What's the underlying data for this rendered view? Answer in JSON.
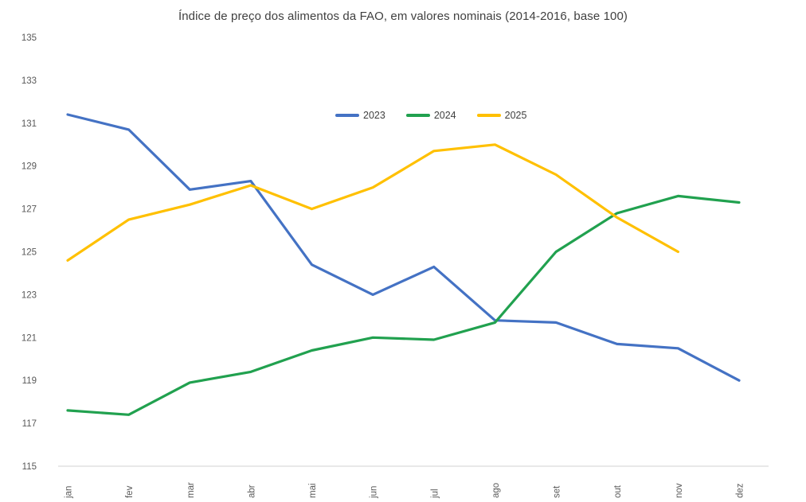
{
  "title": "Índice de preço dos alimentos da FAO, em valores nominais (2014-2016, base 100)",
  "colors": {
    "axis_line": "#D9D9D9",
    "tick_label": "#595959",
    "title_text": "#404040"
  },
  "chart_data": {
    "type": "line",
    "title": "Índice de preço dos alimentos da FAO, em valores nominais (2014-2016, base 100)",
    "xlabel": "",
    "ylabel": "",
    "categories": [
      "jan",
      "fev",
      "mar",
      "abr",
      "mai",
      "jun",
      "jul",
      "ago",
      "set",
      "out",
      "nov",
      "dez"
    ],
    "series": [
      {
        "name": "2023",
        "color": "#4472C4",
        "values": [
          131.4,
          130.7,
          127.9,
          128.3,
          124.4,
          123.0,
          124.3,
          121.8,
          121.7,
          120.7,
          120.5,
          119.0
        ]
      },
      {
        "name": "2024",
        "color": "#21A14F",
        "values": [
          117.6,
          117.4,
          118.9,
          119.4,
          120.4,
          121.0,
          120.9,
          121.7,
          125.0,
          126.8,
          127.6,
          127.3
        ]
      },
      {
        "name": "2025",
        "color": "#FFC000",
        "values": [
          124.6,
          126.5,
          127.2,
          128.1,
          127.0,
          128.0,
          129.7,
          130.0,
          128.6,
          126.6,
          125.0
        ]
      }
    ],
    "ylim": [
      115,
      135
    ],
    "yticks": [
      115,
      117,
      119,
      121,
      123,
      125,
      127,
      129,
      131,
      133,
      135
    ],
    "grid": false,
    "legend_position": "top-center"
  }
}
